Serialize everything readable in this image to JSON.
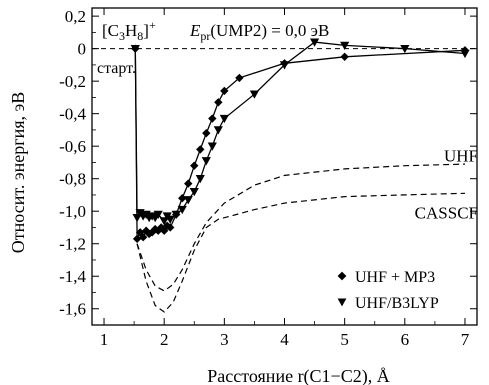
{
  "chart_data": {
    "type": "line",
    "xlabel": "Расстояние r(C1−C2), Å",
    "ylabel": "Относит. энергия, эВ",
    "xlim": [
      0.8,
      7.2
    ],
    "ylim": [
      -1.7,
      0.25
    ],
    "x_ticks": [
      1,
      2,
      3,
      4,
      5,
      6,
      7
    ],
    "y_ticks": [
      0.2,
      0,
      -0.2,
      -0.4,
      -0.6,
      -0.8,
      -1.0,
      -1.2,
      -1.4,
      -1.6
    ],
    "y_tick_labels": [
      "0,2",
      "0",
      "-0,2",
      "-0,4",
      "-0,6",
      "-0,8",
      "-1,0",
      "-1,2",
      "-1,4",
      "-1,6"
    ],
    "reference_line_y": 0,
    "annotations": {
      "species": "[C3H8]+",
      "energy_note": "Epr(UMP2) = 0,0 эВ",
      "start_label": "старт."
    },
    "legend": {
      "placement": "bottom-right",
      "entries": [
        {
          "marker": "diamond",
          "label": "UHF + MP3"
        },
        {
          "marker": "triangle-down",
          "label": "UHF/B3LYP"
        }
      ]
    },
    "series": [
      {
        "name": "UHF + MP3",
        "style": "solid",
        "marker": "diamond",
        "x": [
          1.52,
          1.55,
          1.6,
          1.65,
          1.7,
          1.75,
          1.8,
          1.85,
          1.9,
          1.95,
          2.0,
          2.05,
          2.1,
          2.2,
          2.3,
          2.4,
          2.5,
          2.6,
          2.7,
          2.8,
          2.9,
          3.0,
          3.25,
          4.0,
          5.0,
          7.0
        ],
        "y": [
          0.0,
          -1.17,
          -1.13,
          -1.16,
          -1.12,
          -1.14,
          -1.13,
          -1.11,
          -1.12,
          -1.1,
          -1.12,
          -1.09,
          -1.1,
          -1.02,
          -0.92,
          -0.83,
          -0.72,
          -0.62,
          -0.52,
          -0.43,
          -0.33,
          -0.26,
          -0.18,
          -0.09,
          -0.05,
          -0.01
        ]
      },
      {
        "name": "UHF/B3LYP",
        "style": "solid",
        "marker": "triangle-down",
        "x": [
          1.52,
          1.55,
          1.6,
          1.65,
          1.7,
          1.75,
          1.8,
          1.85,
          1.9,
          2.0,
          2.05,
          2.1,
          2.2,
          2.3,
          2.4,
          2.5,
          2.6,
          2.7,
          2.8,
          2.9,
          3.0,
          3.5,
          4.0,
          4.5,
          5.0,
          6.0,
          7.0
        ],
        "y": [
          0.0,
          -1.04,
          -1.01,
          -1.03,
          -1.02,
          -1.04,
          -1.03,
          -1.04,
          -1.02,
          -1.06,
          -1.03,
          -1.05,
          -1.02,
          -0.99,
          -0.93,
          -0.88,
          -0.8,
          -0.69,
          -0.6,
          -0.5,
          -0.43,
          -0.28,
          -0.1,
          0.04,
          0.02,
          0.0,
          -0.03
        ]
      },
      {
        "name": "UHF",
        "style": "dashed",
        "marker": "none",
        "x": [
          1.55,
          1.7,
          1.85,
          2.0,
          2.15,
          2.3,
          2.5,
          2.7,
          3.0,
          3.5,
          4.0,
          5.0,
          6.0,
          7.0
        ],
        "y": [
          -1.2,
          -1.36,
          -1.46,
          -1.49,
          -1.45,
          -1.36,
          -1.2,
          -1.07,
          -0.95,
          -0.84,
          -0.78,
          -0.74,
          -0.72,
          -0.71
        ]
      },
      {
        "name": "CASSCF",
        "style": "dashed",
        "marker": "none",
        "x": [
          1.55,
          1.7,
          1.85,
          2.0,
          2.15,
          2.3,
          2.5,
          2.7,
          2.9,
          3.2,
          3.5,
          4.0,
          5.0,
          6.0,
          7.0
        ],
        "y": [
          -1.2,
          -1.43,
          -1.58,
          -1.62,
          -1.56,
          -1.43,
          -1.24,
          -1.1,
          -1.05,
          -1.02,
          -0.99,
          -0.95,
          -0.91,
          -0.9,
          -0.89
        ]
      }
    ],
    "curve_labels": [
      "UHF",
      "CASSCF"
    ]
  }
}
